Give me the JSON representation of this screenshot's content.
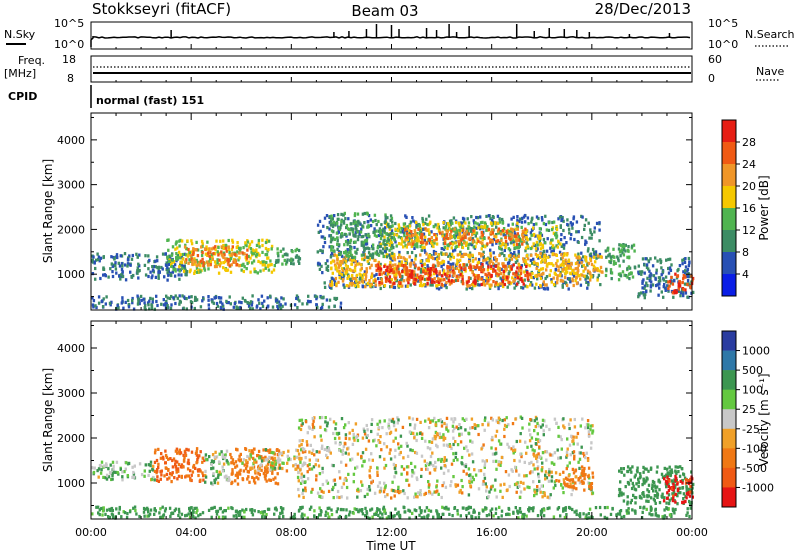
{
  "header": {
    "station": "Stokkseyri (fitACF)",
    "beam": "Beam 03",
    "date": "28/Dec/2013"
  },
  "panels": {
    "nsky_label": "N.Sky",
    "nsky_ticks": [
      "10^5",
      "10^0"
    ],
    "nsearch_label": "N.Search",
    "nsearch_ticks": [
      "10^5",
      "10^0"
    ],
    "freq_label_1": "Freq.",
    "freq_label_2": "[MHz]",
    "freq_ticks": [
      "18",
      "8"
    ],
    "nave_label": "Nave",
    "nave_ticks": [
      "60",
      "0"
    ],
    "cpid_label": "CPID",
    "cpid_text": "normal (fast) 151"
  },
  "colors": {
    "power": [
      "#0a1ee6",
      "#2850b4",
      "#3c8c64",
      "#50b450",
      "#f5c800",
      "#f09628",
      "#f05a14",
      "#e61e14"
    ],
    "velocity": [
      "#2a3ca0",
      "#2e78a8",
      "#3c9650",
      "#64c840",
      "#c8c8c8",
      "#f0a028",
      "#f07814",
      "#f05a14",
      "#e61414"
    ]
  },
  "chart_data": [
    {
      "type": "heatmap",
      "ylabel": "Slant Range [km]",
      "xlabel": "",
      "ylim": [
        200,
        4600
      ],
      "yticks": [
        1000,
        2000,
        3000,
        4000
      ],
      "colorbar": {
        "label": "Power [dB]",
        "ticks": [
          "28",
          "24",
          "20",
          "16",
          "12",
          "8",
          "4"
        ],
        "range": [
          0,
          32
        ]
      },
      "regions": [
        {
          "t0": 0.0,
          "t1": 3.8,
          "r0": 900,
          "r1": 1500,
          "value": 8
        },
        {
          "t0": 3.0,
          "t1": 7.3,
          "r0": 1050,
          "r1": 1800,
          "value": 16
        },
        {
          "t0": 3.7,
          "t1": 6.2,
          "r0": 1200,
          "r1": 1650,
          "value": 24
        },
        {
          "t0": 7.3,
          "t1": 8.3,
          "r0": 1250,
          "r1": 1600,
          "value": 12
        },
        {
          "t0": 9.0,
          "t1": 20.3,
          "r0": 700,
          "r1": 2350,
          "value": 8
        },
        {
          "t0": 9.5,
          "t1": 19.5,
          "r0": 750,
          "r1": 1500,
          "value": 20
        },
        {
          "t0": 11.3,
          "t1": 17.5,
          "r0": 800,
          "r1": 1250,
          "value": 28
        },
        {
          "t0": 11.5,
          "t1": 18.7,
          "r0": 1600,
          "r1": 2200,
          "value": 16
        },
        {
          "t0": 12.5,
          "t1": 17.3,
          "r0": 1700,
          "r1": 2050,
          "value": 24
        },
        {
          "t0": 9.5,
          "t1": 12.0,
          "r0": 1400,
          "r1": 2400,
          "value": 12
        },
        {
          "t0": 19.3,
          "t1": 20.4,
          "r0": 900,
          "r1": 1450,
          "value": 20
        },
        {
          "t0": 20.5,
          "t1": 21.7,
          "r0": 900,
          "r1": 1700,
          "value": 12
        },
        {
          "t0": 21.8,
          "t1": 24.0,
          "r0": 500,
          "r1": 1400,
          "value": 8
        },
        {
          "t0": 23.0,
          "t1": 24.0,
          "r0": 600,
          "r1": 1100,
          "value": 28
        },
        {
          "t0": 0.0,
          "t1": 10.0,
          "r0": 250,
          "r1": 550,
          "value": 8
        }
      ]
    },
    {
      "type": "heatmap",
      "ylabel": "Slant Range [km]",
      "xlabel": "Time UT",
      "ylim": [
        200,
        4600
      ],
      "yticks": [
        1000,
        2000,
        3000,
        4000
      ],
      "xticks": [
        "00:00",
        "04:00",
        "08:00",
        "12:00",
        "16:00",
        "20:00",
        "00:00"
      ],
      "xlim": [
        0,
        24
      ],
      "colorbar": {
        "label": "Velocity [m s⁻¹]",
        "ticks": [
          "1000",
          "500",
          "100",
          "25",
          "-25",
          "-100",
          "-500",
          "-1000"
        ],
        "range": [
          -1200,
          1200
        ]
      },
      "regions": [
        {
          "t0": 0.0,
          "t1": 2.5,
          "r0": 1100,
          "r1": 1500,
          "value": 50
        },
        {
          "t0": 2.5,
          "t1": 4.5,
          "r0": 1050,
          "r1": 1800,
          "value": -300
        },
        {
          "t0": 4.5,
          "t1": 5.5,
          "r0": 1000,
          "r1": 1750,
          "value": 50
        },
        {
          "t0": 5.5,
          "t1": 7.5,
          "r0": 1000,
          "r1": 1800,
          "value": -150
        },
        {
          "t0": 6.0,
          "t1": 8.4,
          "r0": 1300,
          "r1": 1800,
          "value": 0
        },
        {
          "t0": 8.2,
          "t1": 20.0,
          "r0": 700,
          "r1": 2500,
          "value": 0
        },
        {
          "t0": 18.8,
          "t1": 20.0,
          "r0": 900,
          "r1": 1400,
          "value": -200
        },
        {
          "t0": 21.0,
          "t1": 24.0,
          "r0": 550,
          "r1": 1400,
          "value": 150
        },
        {
          "t0": 22.8,
          "t1": 24.0,
          "r0": 600,
          "r1": 1200,
          "value": -800
        },
        {
          "t0": 0.0,
          "t1": 24.0,
          "r0": 250,
          "r1": 500,
          "value": 120
        }
      ]
    }
  ]
}
